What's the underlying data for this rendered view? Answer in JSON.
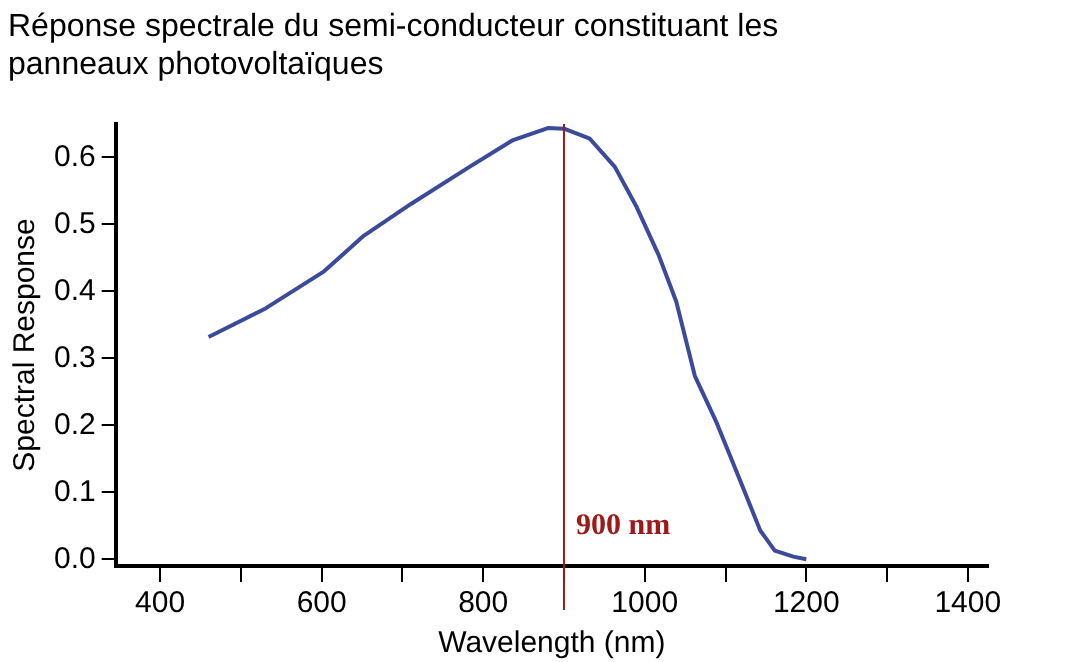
{
  "chart_data": {
    "type": "line",
    "title": "Réponse spectrale du semi-conducteur constituant les panneaux photovoltaïques",
    "xlabel": "Wavelength (nm)",
    "ylabel": "Spectral Response",
    "x": [
      460,
      531,
      603,
      652,
      711,
      783,
      837,
      880,
      900,
      932,
      963,
      990,
      1017,
      1039,
      1062,
      1089,
      1116,
      1143,
      1161,
      1184,
      1200
    ],
    "series": [
      {
        "color": "#3b4a9a",
        "values": [
          0.332,
          0.375,
          0.43,
          0.483,
          0.531,
          0.586,
          0.626,
          0.644,
          0.643,
          0.628,
          0.586,
          0.526,
          0.455,
          0.385,
          0.274,
          0.204,
          0.124,
          0.043,
          0.013,
          0.004,
          0.0
        ]
      }
    ],
    "xlim": [
      345,
      1425
    ],
    "ylim": [
      -0.01,
      0.65
    ],
    "xticks": [
      400,
      {
        "value": 500,
        "label": null
      },
      600,
      {
        "value": 700,
        "label": null
      },
      800,
      {
        "value": 900,
        "label": null
      },
      1000,
      {
        "value": 1100,
        "label": null
      },
      1200,
      {
        "value": 1300,
        "label": null
      },
      1400
    ],
    "yticks": [
      {
        "value": 0,
        "label": "0.0"
      },
      0.1,
      0.2,
      0.3,
      0.4,
      0.5,
      0.6
    ],
    "ref_lines": [
      {
        "axis": "x",
        "value": 900,
        "label": "900 nm",
        "color": "#a01818"
      }
    ],
    "grid": false,
    "legend": false,
    "marker": "none",
    "line_style": "solid"
  }
}
